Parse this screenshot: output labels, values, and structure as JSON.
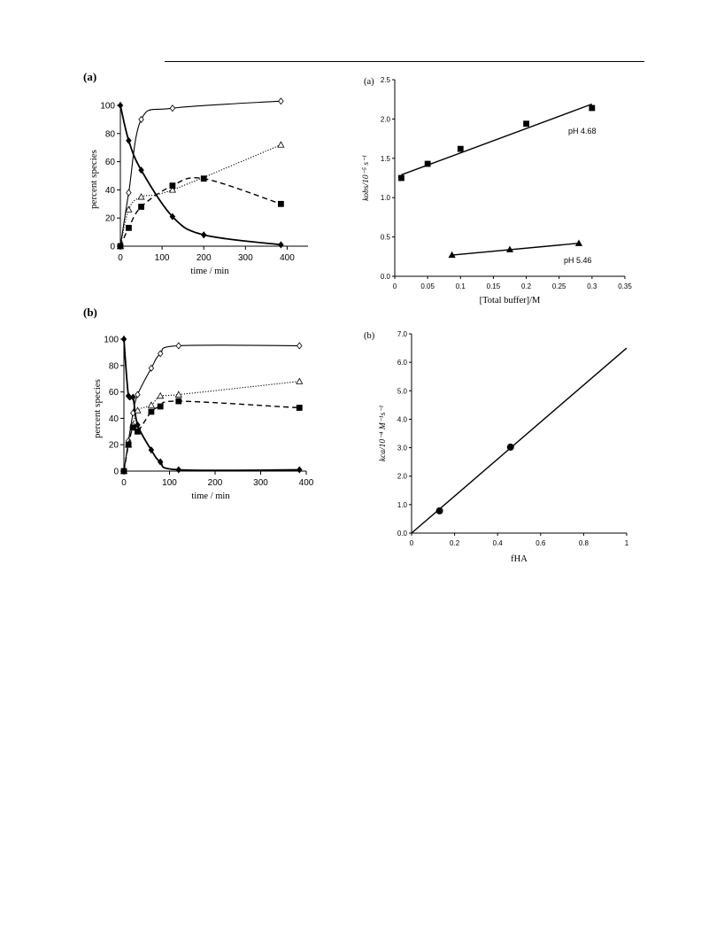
{
  "labels": {
    "left_a": "(a)",
    "left_b": "(b)"
  },
  "chart_data": [
    {
      "id": "left-a",
      "type": "line",
      "xlabel": "time / min",
      "ylabel": "percent species",
      "xlim": [
        0,
        450
      ],
      "ylim": [
        0,
        100
      ],
      "xticks": [
        0,
        100,
        200,
        300,
        400
      ],
      "yticks": [
        0,
        20,
        40,
        60,
        80,
        100
      ],
      "series": [
        {
          "marker": "filled-diamond",
          "line": "solid-thick",
          "x": [
            0,
            20,
            50,
            125,
            200,
            385
          ],
          "y": [
            100,
            75,
            54,
            21,
            8,
            1
          ]
        },
        {
          "marker": "open-diamond",
          "line": "solid",
          "x": [
            0,
            20,
            50,
            125,
            385
          ],
          "y": [
            0,
            38,
            90,
            98,
            103
          ]
        },
        {
          "marker": "open-triangle",
          "line": "dotted",
          "x": [
            0,
            20,
            50,
            125,
            385
          ],
          "y": [
            0,
            26,
            35,
            40,
            72
          ]
        },
        {
          "marker": "filled-square",
          "line": "dashed",
          "x": [
            0,
            20,
            50,
            125,
            200,
            385
          ],
          "y": [
            0,
            13,
            28,
            43,
            48,
            30
          ]
        }
      ]
    },
    {
      "id": "left-b",
      "type": "line",
      "xlabel": "time / min",
      "ylabel": "percent species",
      "xlim": [
        0,
        400
      ],
      "ylim": [
        0,
        100
      ],
      "xticks": [
        0,
        100,
        200,
        300,
        400
      ],
      "yticks": [
        0,
        20,
        40,
        60,
        80,
        100
      ],
      "series": [
        {
          "marker": "filled-diamond",
          "line": "solid-thick",
          "x": [
            0,
            10,
            20,
            30,
            60,
            80,
            120,
            385
          ],
          "y": [
            100,
            57,
            56,
            35,
            16,
            7,
            1,
            1
          ]
        },
        {
          "marker": "open-diamond",
          "line": "solid",
          "x": [
            0,
            10,
            20,
            30,
            60,
            80,
            120,
            385
          ],
          "y": [
            0,
            23,
            44,
            58,
            78,
            89,
            95,
            95
          ]
        },
        {
          "marker": "open-triangle",
          "line": "dotted",
          "x": [
            0,
            10,
            20,
            30,
            60,
            80,
            120,
            385
          ],
          "y": [
            0,
            20,
            35,
            46,
            50,
            57,
            58,
            68
          ]
        },
        {
          "marker": "filled-square",
          "line": "dashed",
          "x": [
            0,
            10,
            20,
            30,
            60,
            80,
            120,
            385
          ],
          "y": [
            0,
            20,
            33,
            30,
            45,
            49,
            53,
            48
          ]
        }
      ]
    },
    {
      "id": "right-a",
      "type": "scatter",
      "panel_label": "(a)",
      "xlabel": "[Total buffer]/M",
      "ylabel": "kobs/10⁻⁵ s⁻¹",
      "xlim": [
        0,
        0.35
      ],
      "ylim": [
        0,
        2.5
      ],
      "xticks": [
        "0",
        "0.05",
        "0.1",
        "0.15",
        "0.2",
        "0.25",
        "0.3",
        "0.35"
      ],
      "yticks": [
        "0.0",
        "0.5",
        "1.0",
        "1.5",
        "2.0",
        "2.5"
      ],
      "series": [
        {
          "name": "pH 4.68",
          "marker": "filled-square",
          "x": [
            0.01,
            0.05,
            0.1,
            0.2,
            0.3
          ],
          "y": [
            1.25,
            1.43,
            1.62,
            1.94,
            2.14
          ],
          "fit": [
            [
              0.01,
              1.29
            ],
            [
              0.3,
              2.19
            ]
          ]
        },
        {
          "name": "pH 5.46",
          "marker": "filled-triangle",
          "x": [
            0.087,
            0.175,
            0.28
          ],
          "y": [
            0.27,
            0.34,
            0.42
          ],
          "fit": [
            [
              0.087,
              0.27
            ],
            [
              0.28,
              0.42
            ]
          ]
        }
      ]
    },
    {
      "id": "right-b",
      "type": "scatter",
      "panel_label": "(b)",
      "xlabel": "fHA",
      "ylabel": "kca/10⁻⁴ M⁻¹s⁻¹",
      "xlim": [
        0,
        1
      ],
      "ylim": [
        0,
        7
      ],
      "xticks": [
        "0",
        "0.2",
        "0.4",
        "0.6",
        "0.8",
        "1"
      ],
      "yticks": [
        "0.0",
        "1.0",
        "2.0",
        "3.0",
        "4.0",
        "5.0",
        "6.0",
        "7.0"
      ],
      "series": [
        {
          "marker": "filled-circle",
          "x": [
            0.13,
            0.46
          ],
          "y": [
            0.78,
            3.02
          ],
          "fit": [
            [
              0,
              0
            ],
            [
              1,
              6.5
            ]
          ]
        }
      ]
    }
  ]
}
